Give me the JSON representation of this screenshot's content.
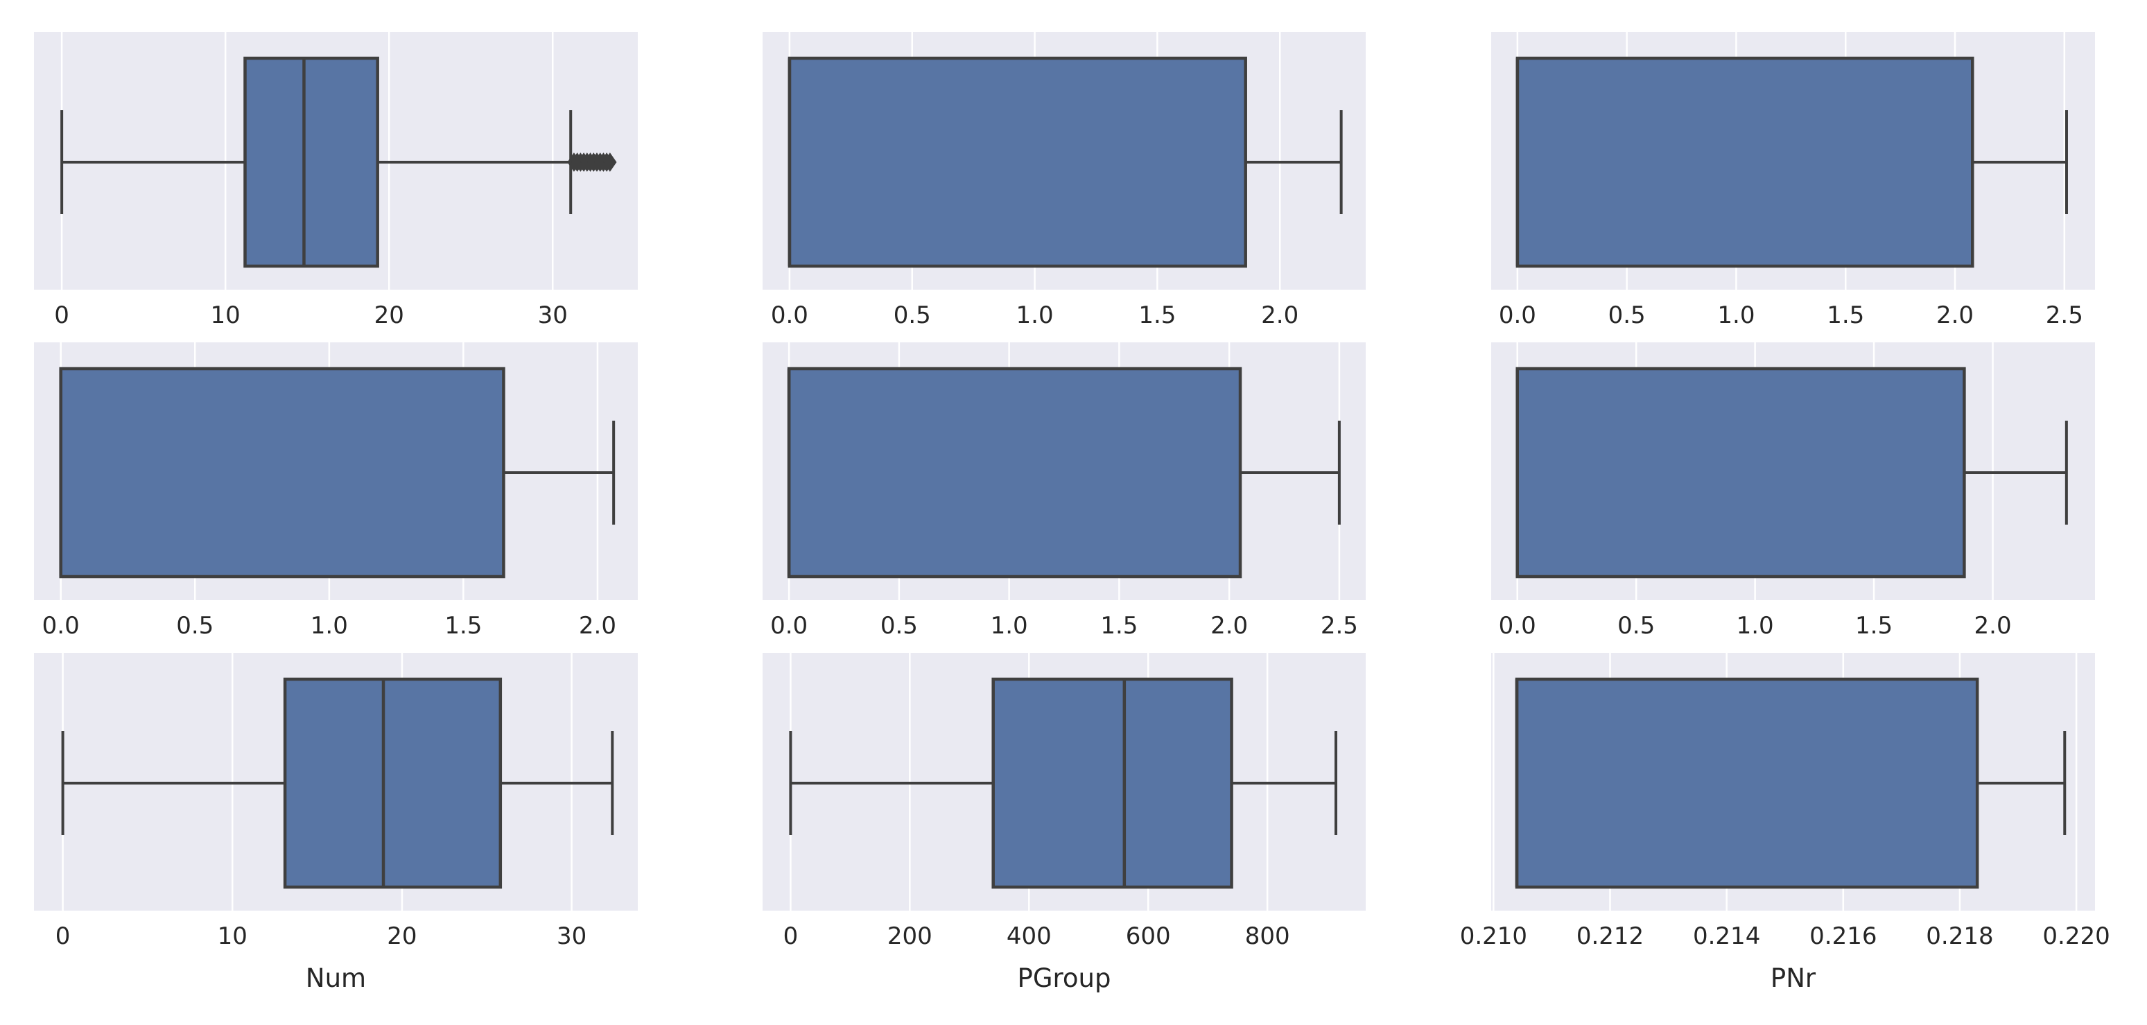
{
  "chart_data": [
    {
      "type": "box",
      "xlabel": "",
      "xlim": [
        -1.7,
        35.2
      ],
      "xticks": [
        "0",
        "10",
        "20",
        "30"
      ],
      "xtick_values": [
        0,
        10,
        20,
        30
      ],
      "box": {
        "whislo": 0,
        "q1": 11.2,
        "median": 14.8,
        "q3": 19.3,
        "whishi": 31.1,
        "fliers": [
          31.3,
          31.5,
          31.7,
          31.9,
          32.1,
          32.3,
          32.5,
          32.7,
          32.9,
          33.1,
          33.3,
          33.5
        ]
      }
    },
    {
      "type": "box",
      "xlabel": "",
      "xlim": [
        -0.11,
        2.35
      ],
      "xticks": [
        "0.0",
        "0.5",
        "1.0",
        "1.5",
        "2.0"
      ],
      "xtick_values": [
        0,
        0.5,
        1.0,
        1.5,
        2.0
      ],
      "box": {
        "whislo": 0,
        "q1": 0,
        "median": 0,
        "q3": 1.86,
        "whishi": 2.25,
        "fliers": []
      }
    },
    {
      "type": "box",
      "xlabel": "",
      "xlim": [
        -0.12,
        2.64
      ],
      "xticks": [
        "0.0",
        "0.5",
        "1.0",
        "1.5",
        "2.0",
        "2.5"
      ],
      "xtick_values": [
        0,
        0.5,
        1.0,
        1.5,
        2.0,
        2.5
      ],
      "box": {
        "whislo": 0,
        "q1": 0,
        "median": 0,
        "q3": 2.08,
        "whishi": 2.51,
        "fliers": []
      }
    },
    {
      "type": "box",
      "xlabel": "",
      "xlim": [
        -0.1,
        2.15
      ],
      "xticks": [
        "0.0",
        "0.5",
        "1.0",
        "1.5",
        "2.0"
      ],
      "xtick_values": [
        0,
        0.5,
        1.0,
        1.5,
        2.0
      ],
      "box": {
        "whislo": 0,
        "q1": 0,
        "median": 0,
        "q3": 1.65,
        "whishi": 2.06,
        "fliers": []
      }
    },
    {
      "type": "box",
      "xlabel": "",
      "xlim": [
        -0.12,
        2.62
      ],
      "xticks": [
        "0.0",
        "0.5",
        "1.0",
        "1.5",
        "2.0",
        "2.5"
      ],
      "xtick_values": [
        0,
        0.5,
        1.0,
        1.5,
        2.0,
        2.5
      ],
      "box": {
        "whislo": 0,
        "q1": 0,
        "median": 0,
        "q3": 2.05,
        "whishi": 2.5,
        "fliers": []
      }
    },
    {
      "type": "box",
      "xlabel": "",
      "xlim": [
        -0.11,
        2.43
      ],
      "xticks": [
        "0.0",
        "0.5",
        "1.0",
        "1.5",
        "2.0"
      ],
      "xtick_values": [
        0,
        0.5,
        1.0,
        1.5,
        2.0
      ],
      "box": {
        "whislo": 0,
        "q1": 0,
        "median": 0,
        "q3": 1.88,
        "whishi": 2.31,
        "fliers": []
      }
    },
    {
      "type": "box",
      "xlabel": "Num",
      "xlim": [
        -1.7,
        33.9
      ],
      "xticks": [
        "0",
        "10",
        "20",
        "30"
      ],
      "xtick_values": [
        0,
        10,
        20,
        30
      ],
      "box": {
        "whislo": 0,
        "q1": 13.1,
        "median": 18.9,
        "q3": 25.8,
        "whishi": 32.4,
        "fliers": []
      }
    },
    {
      "type": "box",
      "xlabel": "PGroup",
      "xlim": [
        -47,
        965
      ],
      "xticks": [
        "0",
        "200",
        "400",
        "600",
        "800"
      ],
      "xtick_values": [
        0,
        200,
        400,
        600,
        800
      ],
      "box": {
        "whislo": 0,
        "q1": 340,
        "median": 560,
        "q3": 740,
        "whishi": 915,
        "fliers": []
      }
    },
    {
      "type": "box",
      "xlabel": "PNr",
      "xlim": [
        0.20996,
        0.22032
      ],
      "xticks": [
        "0.210",
        "0.212",
        "0.214",
        "0.216",
        "0.218",
        "0.220"
      ],
      "xtick_values": [
        0.21,
        0.212,
        0.214,
        0.216,
        0.218,
        0.22
      ],
      "box": {
        "whislo": 0.2104,
        "q1": 0.2104,
        "median": 0.2104,
        "q3": 0.2183,
        "whishi": 0.2198,
        "fliers": []
      }
    }
  ],
  "colors": {
    "panel_bg": "#eaeaf2",
    "grid": "#ffffff",
    "box_fill": "#5875a4",
    "line": "#3f3f3f",
    "text": "#262626"
  }
}
